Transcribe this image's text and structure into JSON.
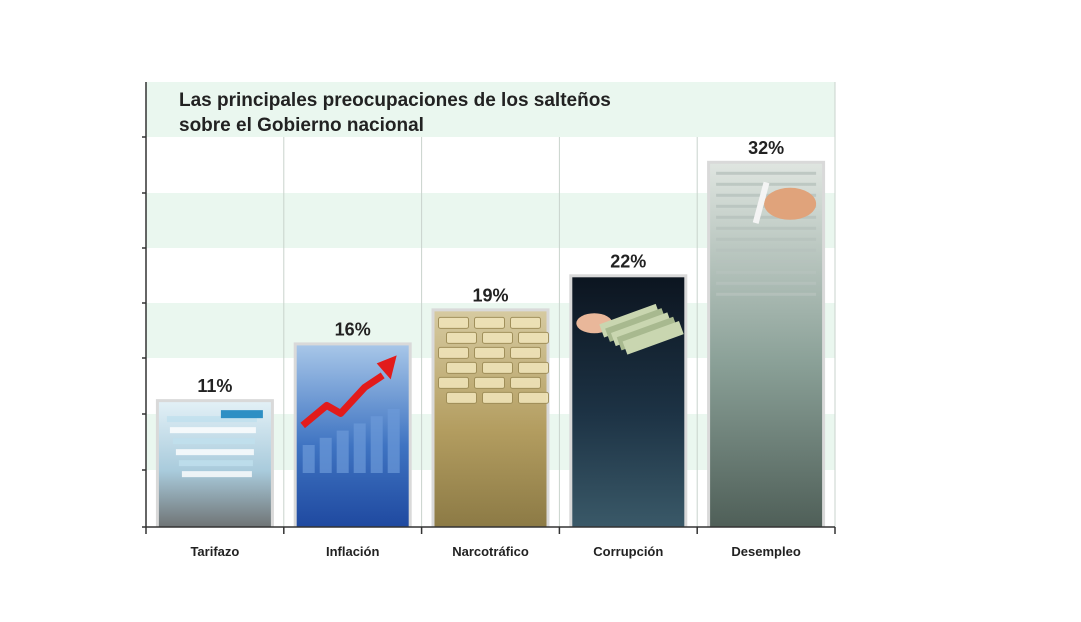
{
  "chart_data": {
    "type": "bar",
    "title_line1": "Las principales preocupaciones de los salteños",
    "title_line2": "sobre el Gobierno nacional",
    "categories": [
      "Tarifazo",
      "Inflación",
      "Narcotráfico",
      "Corrupción",
      "Desempleo"
    ],
    "values": [
      11,
      16,
      19,
      22,
      32
    ],
    "value_labels": [
      "11%",
      "16%",
      "19%",
      "22%",
      "32%"
    ],
    "ylim": [
      0,
      35
    ],
    "xlabel": "",
    "ylabel": "",
    "grid": true,
    "legend": "none",
    "bar_fills": [
      {
        "top": "#e2f0f6",
        "mid": "#a9cbdc",
        "bottom": "#6f7475",
        "accent": "#2e8fc4"
      },
      {
        "top": "#a7c6e8",
        "mid": "#3f74c2",
        "bottom": "#1f49a0",
        "accent": "#e21b1b"
      },
      {
        "top": "#d6caa0",
        "mid": "#b39d60",
        "bottom": "#8c7a45",
        "accent": "#efe3b8"
      },
      {
        "top": "#0c1520",
        "mid": "#1d3345",
        "bottom": "#3a5968",
        "accent": "#e9b79a"
      },
      {
        "top": "#dfe5e0",
        "mid": "#8aa097",
        "bottom": "#4f5f58",
        "accent": "#e0a37b"
      }
    ],
    "band_color": "#eaf7ef",
    "grid_color": "#c9d3cc",
    "axis_color": "#333333",
    "text_color": "#222222"
  }
}
